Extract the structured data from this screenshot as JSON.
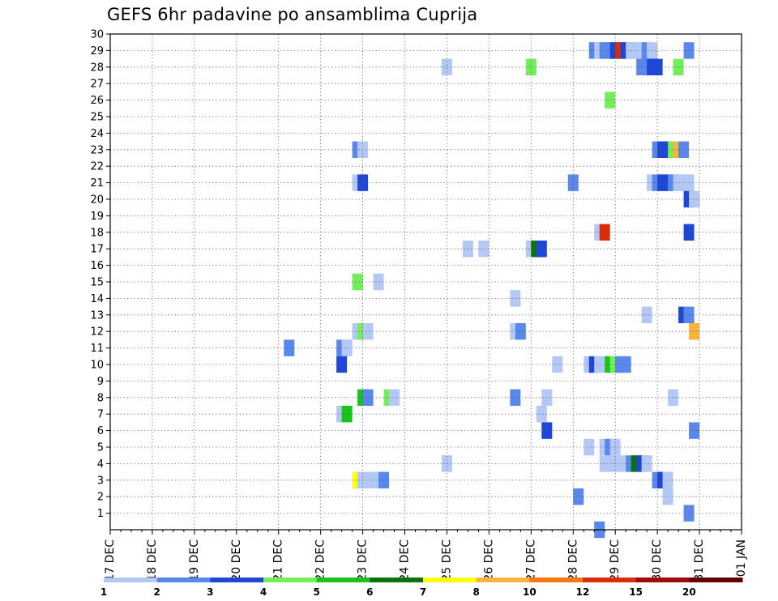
{
  "chart_data": {
    "type": "heatmap",
    "title": "GEFS 6hr padavine po ansamblima Cuprija",
    "xlabel": "",
    "ylabel": "",
    "x_tick_labels": [
      "17 DEC",
      "18 DEC",
      "19 DEC",
      "20 DEC",
      "21 DEC",
      "22 DEC",
      "23 DEC",
      "24 DEC",
      "25 DEC",
      "26 DEC",
      "27 DEC",
      "28 DEC",
      "29 DEC",
      "30 DEC",
      "31 DEC",
      "01 JAN"
    ],
    "y_ticks": [
      1,
      2,
      3,
      4,
      5,
      6,
      7,
      8,
      9,
      10,
      11,
      12,
      13,
      14,
      15,
      16,
      17,
      18,
      19,
      20,
      21,
      22,
      23,
      24,
      25,
      26,
      27,
      28,
      29,
      30
    ],
    "ylim": [
      0,
      30
    ],
    "steps_per_day": 4,
    "grid": true,
    "colorbar": {
      "labels": [
        "1",
        "2",
        "3",
        "4",
        "5",
        "6",
        "7",
        "8",
        "10",
        "12",
        "15",
        "20"
      ],
      "colors": [
        "#b4c8f5",
        "#5a87eb",
        "#1e46d7",
        "#73ee5a",
        "#19c319",
        "#0a730a",
        "#ffff14",
        "#fab43c",
        "#f5780f",
        "#dc2d0a",
        "#a00a0a",
        "#640000"
      ]
    },
    "cells": [
      [
        29,
        45.5,
        1
      ],
      [
        29,
        46,
        0
      ],
      [
        29,
        46.5,
        1
      ],
      [
        29,
        47,
        1
      ],
      [
        29,
        47.5,
        2
      ],
      [
        29,
        48,
        9
      ],
      [
        29,
        48.5,
        2
      ],
      [
        29,
        49,
        0
      ],
      [
        29,
        49.5,
        0
      ],
      [
        29,
        50.5,
        1
      ],
      [
        29,
        51,
        0
      ],
      [
        29,
        54.5,
        1
      ],
      [
        28,
        31.5,
        0
      ],
      [
        28,
        39.5,
        3
      ],
      [
        28,
        50,
        1
      ],
      [
        28,
        50.5,
        1
      ],
      [
        28,
        51,
        2
      ],
      [
        28,
        51.5,
        2
      ],
      [
        28,
        53.5,
        3
      ],
      [
        26,
        47,
        3
      ],
      [
        23,
        23,
        1
      ],
      [
        23,
        23.5,
        0
      ],
      [
        23,
        51.5,
        1
      ],
      [
        23,
        52,
        2
      ],
      [
        23,
        52.5,
        2
      ],
      [
        23,
        53,
        3
      ],
      [
        23,
        53.5,
        7
      ],
      [
        23,
        54,
        1
      ],
      [
        21,
        23,
        0
      ],
      [
        21,
        23.5,
        2
      ],
      [
        21,
        43.5,
        1
      ],
      [
        21,
        51,
        0
      ],
      [
        21,
        51.5,
        1
      ],
      [
        21,
        52,
        2
      ],
      [
        21,
        52.5,
        2
      ],
      [
        21,
        53,
        1
      ],
      [
        21,
        53.5,
        0
      ],
      [
        21,
        54,
        0
      ],
      [
        21,
        54.5,
        0
      ],
      [
        20,
        54.5,
        2
      ],
      [
        20,
        55,
        0
      ],
      [
        18,
        46,
        0
      ],
      [
        18,
        46.5,
        9
      ],
      [
        18,
        54.5,
        2
      ],
      [
        17,
        33.5,
        0
      ],
      [
        17,
        35,
        0
      ],
      [
        17,
        39.5,
        0
      ],
      [
        17,
        40,
        5
      ],
      [
        17,
        40.5,
        2
      ],
      [
        15,
        23,
        3
      ],
      [
        15,
        25,
        0
      ],
      [
        14,
        38,
        0
      ],
      [
        13,
        50.5,
        0
      ],
      [
        13,
        54,
        2
      ],
      [
        13,
        54.5,
        1
      ],
      [
        12,
        23,
        0
      ],
      [
        12,
        23.5,
        3
      ],
      [
        12,
        24,
        0
      ],
      [
        12,
        38,
        0
      ],
      [
        12,
        38.5,
        1
      ],
      [
        12,
        55,
        7
      ],
      [
        11,
        16.5,
        1
      ],
      [
        11,
        21.5,
        1
      ],
      [
        11,
        22,
        0
      ],
      [
        10,
        21.5,
        2
      ],
      [
        10,
        42,
        0
      ],
      [
        10,
        45,
        0
      ],
      [
        10,
        45.5,
        2
      ],
      [
        10,
        46,
        0
      ],
      [
        10,
        46.5,
        0
      ],
      [
        10,
        47,
        4
      ],
      [
        10,
        47.5,
        3
      ],
      [
        10,
        48,
        1
      ],
      [
        10,
        48.5,
        1
      ],
      [
        8,
        23.5,
        4
      ],
      [
        8,
        24,
        1
      ],
      [
        8,
        26,
        3
      ],
      [
        8,
        26.5,
        0
      ],
      [
        8,
        38,
        1
      ],
      [
        8,
        41,
        0
      ],
      [
        8,
        53,
        0
      ],
      [
        7,
        21.5,
        0
      ],
      [
        7,
        22,
        4
      ],
      [
        7,
        40.5,
        0
      ],
      [
        6,
        41,
        2
      ],
      [
        6,
        55,
        1
      ],
      [
        5,
        45,
        0
      ],
      [
        5,
        46.5,
        0
      ],
      [
        5,
        47,
        1
      ],
      [
        5,
        47.5,
        0
      ],
      [
        4,
        31.5,
        0
      ],
      [
        4,
        46.5,
        0
      ],
      [
        4,
        47,
        0
      ],
      [
        4,
        47.5,
        0
      ],
      [
        4,
        48,
        0
      ],
      [
        4,
        49,
        1
      ],
      [
        4,
        49.5,
        5
      ],
      [
        4,
        50,
        2
      ],
      [
        4,
        50.5,
        0
      ],
      [
        3,
        23,
        6
      ],
      [
        3,
        23.5,
        0
      ],
      [
        3,
        24,
        0
      ],
      [
        3,
        24.5,
        0
      ],
      [
        3,
        25,
        0
      ],
      [
        3,
        25.5,
        1
      ],
      [
        3,
        51.5,
        1
      ],
      [
        3,
        52,
        2
      ],
      [
        3,
        52.5,
        0
      ],
      [
        2,
        44,
        1
      ],
      [
        2,
        52.5,
        0
      ],
      [
        1,
        54.5,
        1
      ],
      [
        0,
        46,
        1
      ]
    ]
  }
}
